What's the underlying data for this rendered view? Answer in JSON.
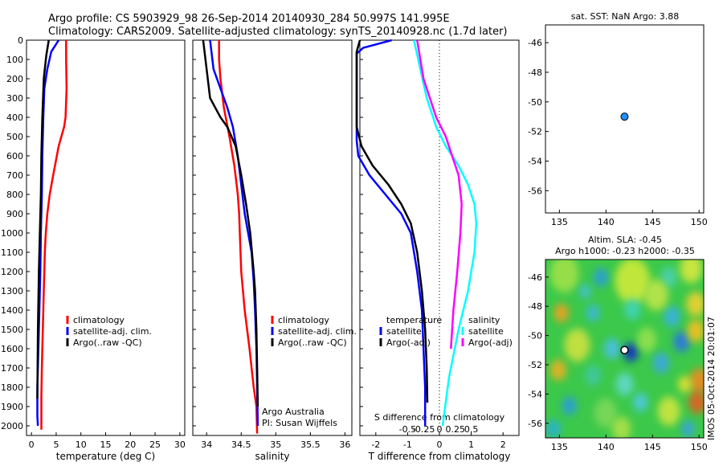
{
  "header": {
    "line1": "Argo profile: CS 5903929_98 26-Sep-2014 20140930_284 50.997S 141.995E",
    "line2": "Climatology: CARS2009. Satellite-adjusted climatology: synTS_20140928.nc (1.7d later)"
  },
  "colors": {
    "climatology": "#ff0000",
    "satellite_adj": "#0000ff",
    "argo": "#000000",
    "temp_satellite": "#0000ff",
    "temp_argo": "#000000",
    "sal_satellite": "#00ffff",
    "sal_argo": "#ff00ff",
    "position_marker": "#1e90ff"
  },
  "credit": {
    "line1": "Argo Australia",
    "line2": "PI: Susan Wijffels"
  },
  "side_label": "IMOS 05-Oct-2014 20:01:07",
  "chart_data": [
    {
      "type": "line",
      "name": "temperature",
      "xlabel": "temperature (deg C)",
      "xlim": [
        -1,
        31
      ],
      "xticks": [
        0,
        5,
        10,
        15,
        20,
        25,
        30
      ],
      "xticklabels": [
        "0",
        "5",
        "10",
        "15",
        "20",
        "25",
        "30"
      ],
      "ylim": [
        2050,
        0
      ],
      "yticks": [
        0,
        100,
        200,
        300,
        400,
        500,
        600,
        700,
        800,
        900,
        1000,
        1100,
        1200,
        1300,
        1400,
        1500,
        1600,
        1700,
        1800,
        1900,
        2000
      ],
      "yticklabels": [
        "0",
        "100",
        "200",
        "300",
        "400",
        "500",
        "600",
        "700",
        "800",
        "900",
        "1000",
        "1100",
        "1200",
        "1300",
        "1400",
        "1500",
        "1600",
        "1700",
        "1800",
        "1900",
        "2000"
      ],
      "legend": [
        "climatology",
        "satellite-adj. clim.",
        "Argo(..raw -QC)"
      ],
      "series": [
        {
          "name": "climatology",
          "color_key": "climatology",
          "x": [
            7.0,
            7.0,
            7.1,
            6.9,
            6.6,
            5.5,
            4.4,
            3.7,
            3.2,
            2.9,
            2.7,
            2.6,
            2.5,
            2.4,
            2.3,
            2.2,
            2.1,
            2.0,
            2.0
          ],
          "y": [
            0,
            100,
            250,
            400,
            450,
            550,
            700,
            800,
            900,
            1000,
            1100,
            1200,
            1300,
            1400,
            1500,
            1600,
            1700,
            1850,
            2020
          ]
        },
        {
          "name": "satellite-adj. clim.",
          "color_key": "satellite_adj",
          "x": [
            5.5,
            4.0,
            3.2,
            2.6,
            2.4,
            2.3,
            2.2,
            2.1,
            1.9,
            1.8,
            1.6,
            1.4,
            1.2,
            1.2,
            1.3
          ],
          "y": [
            0,
            60,
            150,
            250,
            400,
            500,
            600,
            800,
            1000,
            1200,
            1400,
            1600,
            1800,
            1950,
            2000
          ]
        },
        {
          "name": "Argo(..raw -QC)",
          "color_key": "argo",
          "x": [
            3.5,
            3.0,
            2.5,
            2.2,
            2.0,
            1.9,
            1.7,
            1.5,
            1.3,
            1.2
          ],
          "y": [
            0,
            80,
            200,
            400,
            600,
            800,
            1000,
            1200,
            1500,
            1860
          ]
        }
      ]
    },
    {
      "type": "line",
      "name": "salinity",
      "xlabel": "salinity",
      "xlim": [
        33.8,
        36.1
      ],
      "xticks": [
        34,
        34.5,
        35,
        35.5,
        36
      ],
      "xticklabels": [
        "34",
        "34.5",
        "35",
        "35.5",
        "36"
      ],
      "ylim": [
        2050,
        0
      ],
      "legend": [
        "climatology",
        "satellite-adj. clim.",
        "Argo(..raw -QC)"
      ],
      "series": [
        {
          "name": "climatology",
          "color_key": "climatology",
          "x": [
            34.18,
            34.18,
            34.2,
            34.25,
            34.33,
            34.4,
            34.45,
            34.47,
            34.48,
            34.5,
            34.55,
            34.62,
            34.68,
            34.72,
            34.73
          ],
          "y": [
            0,
            100,
            200,
            350,
            500,
            650,
            800,
            900,
            1000,
            1200,
            1400,
            1600,
            1800,
            1900,
            2040
          ]
        },
        {
          "name": "satellite-adj. clim.",
          "color_key": "satellite_adj",
          "x": [
            34.05,
            34.1,
            34.2,
            34.3,
            34.38,
            34.45,
            34.5,
            34.55,
            34.6,
            34.65,
            34.68,
            34.7,
            34.72,
            34.73,
            34.74
          ],
          "y": [
            0,
            150,
            250,
            350,
            450,
            600,
            750,
            900,
            1000,
            1100,
            1250,
            1400,
            1600,
            1800,
            2000
          ]
        },
        {
          "name": "Argo(..raw -QC)",
          "color_key": "argo",
          "x": [
            33.95,
            34.05,
            34.2,
            34.3,
            34.42,
            34.5,
            34.57,
            34.63,
            34.68,
            34.7,
            34.72,
            34.73,
            34.74
          ],
          "y": [
            0,
            300,
            400,
            450,
            550,
            700,
            850,
            1000,
            1200,
            1300,
            1500,
            1700,
            1900
          ]
        }
      ]
    },
    {
      "type": "line",
      "name": "difference",
      "xlabel": "T difference from climatology",
      "xlabel_top": "S difference from climatology",
      "xlim": [
        -2.5,
        2.5
      ],
      "xticks": [
        -2,
        -1,
        0,
        1,
        2
      ],
      "xticklabels": [
        "-2",
        "-1",
        "0",
        "1",
        "2"
      ],
      "sticks": [
        -0.5,
        -0.25,
        0,
        0.25,
        0.5
      ],
      "sticklabels": [
        "-0.5",
        "-0.25",
        "0",
        "0.25",
        "0.5"
      ],
      "ylim": [
        2050,
        0
      ],
      "legend_temperature_title": "temperature",
      "legend_salinity_title": "salinity",
      "legend_temperature": [
        "satellite",
        "Argo(-adj)"
      ],
      "legend_salinity": [
        "satellite",
        "Argo(-adj)"
      ],
      "series": [
        {
          "name": "temperature satellite",
          "color_key": "temp_satellite",
          "x": [
            -1.5,
            -2.4,
            -2.6,
            -2.6,
            -2.55,
            -2.2,
            -1.7,
            -1.2,
            -0.9,
            -0.7,
            -0.55,
            -0.5,
            -0.45,
            -0.45
          ],
          "y": [
            0,
            40,
            70,
            520,
            600,
            700,
            800,
            900,
            1000,
            1200,
            1400,
            1600,
            1800,
            2000
          ]
        },
        {
          "name": "temperature Argo(-adj)",
          "color_key": "temp_argo",
          "x": [
            -2.5,
            -2.6,
            -2.6,
            -2.45,
            -2.1,
            -1.6,
            -1.2,
            -0.9,
            -0.7,
            -0.55,
            -0.45,
            -0.4,
            -0.38
          ],
          "y": [
            0,
            60,
            450,
            550,
            650,
            750,
            850,
            950,
            1100,
            1300,
            1500,
            1700,
            1880
          ]
        },
        {
          "name": "salinity satellite",
          "color_key": "sal_satellite",
          "x": [
            -0.4,
            -0.3,
            -0.2,
            -0.05,
            0.1,
            0.3,
            0.45,
            0.55,
            0.58,
            0.55,
            0.45,
            0.3,
            0.15,
            0.05
          ],
          "y": [
            0,
            150,
            300,
            450,
            550,
            650,
            750,
            850,
            950,
            1100,
            1300,
            1500,
            1750,
            2000
          ]
        },
        {
          "name": "salinity Argo(-adj)",
          "color_key": "sal_argo",
          "x": [
            -0.35,
            -0.25,
            -0.05,
            0.1,
            0.2,
            0.3,
            0.35,
            0.33,
            0.28,
            0.22,
            0.18
          ],
          "y": [
            0,
            200,
            400,
            500,
            600,
            700,
            850,
            1000,
            1200,
            1400,
            1600
          ]
        }
      ]
    },
    {
      "type": "scatter",
      "name": "position_sst",
      "title": "sat. SST: NaN Argo: 3.88",
      "xlim": [
        133.5,
        150.5
      ],
      "ylim": [
        -57.5,
        -44.8
      ],
      "xticks": [
        135,
        140,
        145,
        150
      ],
      "xticklabels": [
        "135",
        "140",
        "145",
        "150"
      ],
      "yticks": [
        -46,
        -48,
        -50,
        -52,
        -54,
        -56
      ],
      "yticklabels": [
        "-46",
        "-48",
        "-50",
        "-52",
        "-54",
        "-56"
      ],
      "points": [
        {
          "x": 141.995,
          "y": -50.997
        }
      ]
    },
    {
      "type": "heatmap",
      "name": "altimetry",
      "title_line1": "Altim. SLA: -0.45",
      "title_line2": "Argo h1000: -0.23 h2000: -0.35",
      "xlim": [
        133.5,
        150.5
      ],
      "ylim": [
        -57.0,
        -44.8
      ],
      "xticks": [
        135,
        140,
        145,
        150
      ],
      "xticklabels": [
        "135",
        "140",
        "145",
        "150"
      ],
      "yticks": [
        -46,
        -48,
        -50,
        -52,
        -54,
        -56
      ],
      "yticklabels": [
        "-46",
        "-48",
        "-50",
        "-52",
        "-54",
        "-56"
      ],
      "points": [
        {
          "x": 141.995,
          "y": -50.997
        }
      ]
    }
  ]
}
